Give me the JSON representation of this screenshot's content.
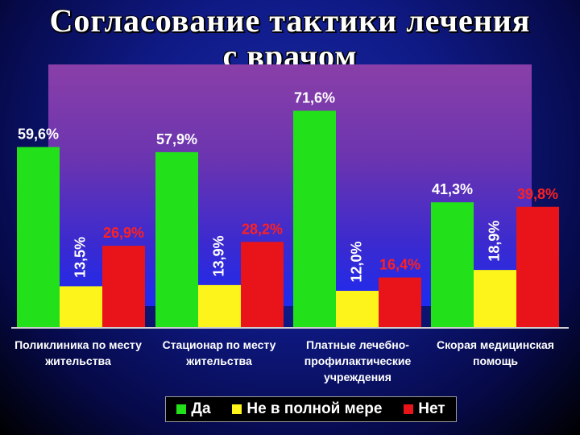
{
  "slide": {
    "title_line1": "Согласование тактики лечения",
    "title_line2": "с врачом"
  },
  "colors": {
    "yes": "#22e01a",
    "partial": "#fcf41a",
    "no": "#e8141a",
    "label_yes": "#ffffff",
    "label_partial": "#ffffff",
    "label_no": "#ff2020"
  },
  "chart_data": {
    "type": "bar",
    "categories": [
      "Поликлиника по месту жительства",
      "Стационар по месту жительства",
      "Платные лечебно-профилактические учреждения",
      "Скорая медицинская помощь"
    ],
    "category_lines": [
      [
        "Поликлиника по месту",
        "жительства"
      ],
      [
        "Стационар по месту",
        "жительства"
      ],
      [
        "Платные лечебно-",
        "профилактические",
        "учреждения"
      ],
      [
        "Скорая медицинская",
        "помощь"
      ]
    ],
    "series": [
      {
        "name": "Да",
        "values": [
          59.6,
          57.9,
          71.6,
          41.3
        ],
        "labels": [
          "59,6%",
          "57,9%",
          "71,6%",
          "41,3%"
        ]
      },
      {
        "name": "Не в полной мере",
        "values": [
          13.5,
          13.9,
          12.0,
          18.9
        ],
        "labels": [
          "13,5%",
          "13,9%",
          "12,0%",
          "18,9%"
        ]
      },
      {
        "name": "Нет",
        "values": [
          26.9,
          28.2,
          16.4,
          39.8
        ],
        "labels": [
          "26,9%",
          "28,2%",
          "16,4%",
          "39,8%"
        ]
      }
    ],
    "ylim": [
      0,
      80
    ],
    "grid": false,
    "legend_position": "bottom"
  }
}
